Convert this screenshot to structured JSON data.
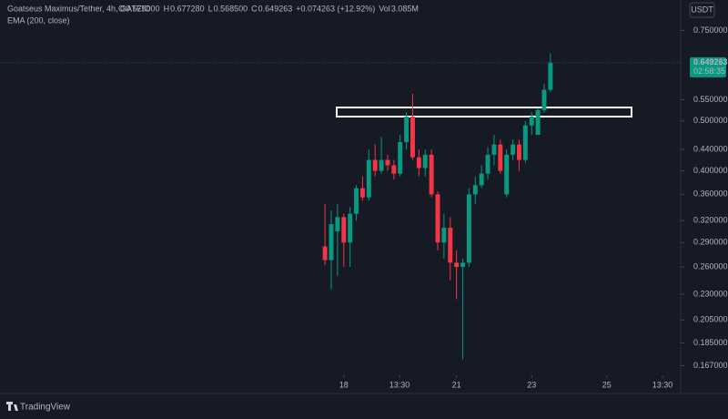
{
  "chart_data": {
    "type": "candlestick",
    "title": "Goatseus Maximus/Tether, 4h, GATEIO",
    "indicator": "EMA (200, close)",
    "ohlc_header": {
      "o_label": "O",
      "o": "0.575000",
      "h_label": "H",
      "h": "0.677280",
      "l_label": "L",
      "l": "0.568500",
      "c_label": "C",
      "c": "0.649263",
      "change": "+0.074263 (+12.92%)",
      "vol_label": "Vol",
      "vol": "3.085M"
    },
    "currency": "USDT",
    "last_price_label": "0.649263",
    "countdown": "02:58:35",
    "brand": "TradingView",
    "up_color": "#089981",
    "down_color": "#f23645",
    "open": [
      0.285,
      0.268,
      0.305,
      0.325,
      0.29,
      0.33,
      0.37,
      0.355,
      0.42,
      0.4,
      0.42,
      0.41,
      0.395,
      0.455,
      0.51,
      0.425,
      0.405,
      0.43,
      0.36,
      0.29,
      0.31,
      0.265,
      0.26,
      0.265,
      0.36,
      0.375,
      0.395,
      0.43,
      0.45,
      0.36,
      0.43,
      0.45,
      0.42,
      0.49,
      0.47,
      0.525,
      0.575
    ],
    "high": [
      0.345,
      0.335,
      0.345,
      0.33,
      0.34,
      0.375,
      0.39,
      0.44,
      0.45,
      0.465,
      0.43,
      0.42,
      0.47,
      0.52,
      0.565,
      0.44,
      0.44,
      0.44,
      0.365,
      0.33,
      0.325,
      0.28,
      0.27,
      0.37,
      0.39,
      0.41,
      0.445,
      0.47,
      0.46,
      0.44,
      0.46,
      0.46,
      0.5,
      0.52,
      0.53,
      0.59,
      0.67728
    ],
    "low": [
      0.262,
      0.235,
      0.25,
      0.26,
      0.26,
      0.32,
      0.35,
      0.35,
      0.39,
      0.395,
      0.4,
      0.385,
      0.39,
      0.44,
      0.42,
      0.39,
      0.39,
      0.355,
      0.28,
      0.27,
      0.245,
      0.225,
      0.172,
      0.26,
      0.345,
      0.37,
      0.385,
      0.41,
      0.395,
      0.355,
      0.42,
      0.4,
      0.415,
      0.47,
      0.47,
      0.52,
      0.5685
    ],
    "close": [
      0.268,
      0.315,
      0.325,
      0.29,
      0.33,
      0.37,
      0.355,
      0.42,
      0.4,
      0.42,
      0.41,
      0.395,
      0.455,
      0.51,
      0.425,
      0.405,
      0.43,
      0.36,
      0.29,
      0.31,
      0.265,
      0.26,
      0.265,
      0.36,
      0.375,
      0.395,
      0.43,
      0.45,
      0.4,
      0.43,
      0.45,
      0.42,
      0.49,
      0.51,
      0.525,
      0.575,
      0.649263
    ],
    "log_scale": true,
    "grid": false,
    "ylim": [
      0.16,
      0.86
    ],
    "yticks": [
      {
        "value": 0.75,
        "label": "0.750000"
      },
      {
        "value": 0.55,
        "label": "0.550000"
      },
      {
        "value": 0.5,
        "label": "0.500000"
      },
      {
        "value": 0.44,
        "label": "0.440000"
      },
      {
        "value": 0.4,
        "label": "0.400000"
      },
      {
        "value": 0.36,
        "label": "0.360000"
      },
      {
        "value": 0.32,
        "label": "0.320000"
      },
      {
        "value": 0.29,
        "label": "0.290000"
      },
      {
        "value": 0.26,
        "label": "0.260000"
      },
      {
        "value": 0.23,
        "label": "0.230000"
      },
      {
        "value": 0.205,
        "label": "0.205000"
      },
      {
        "value": 0.185,
        "label": "0.185000"
      },
      {
        "value": 0.167,
        "label": "0.167000"
      }
    ],
    "xlim": [
      -51.9,
      56.8
    ],
    "xticks": [
      {
        "value": 3,
        "label": "18"
      },
      {
        "value": 11.9,
        "label": "13:30"
      },
      {
        "value": 21,
        "label": "21"
      },
      {
        "value": 33,
        "label": "23"
      },
      {
        "value": 45,
        "label": "25"
      },
      {
        "value": 53.9,
        "label": "13:30"
      }
    ]
  }
}
